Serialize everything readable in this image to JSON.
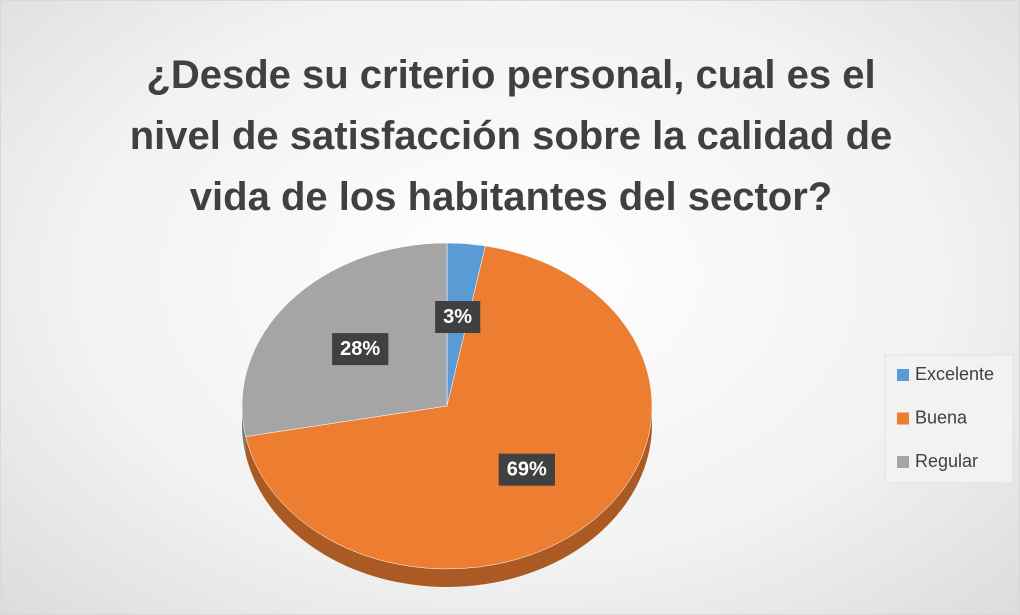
{
  "chart_data": {
    "type": "pie",
    "title": "¿Desde su criterio personal, cual es el nivel de satisfacción sobre la calidad de vida de los habitantes del sector?",
    "categories": [
      "Excelente",
      "Buena",
      "Regular"
    ],
    "values": [
      3,
      69,
      28
    ],
    "value_labels": [
      "3%",
      "69%",
      "28%"
    ],
    "colors": [
      "#5b9bd5",
      "#ed7d31",
      "#a5a5a5"
    ],
    "legend": "right"
  }
}
